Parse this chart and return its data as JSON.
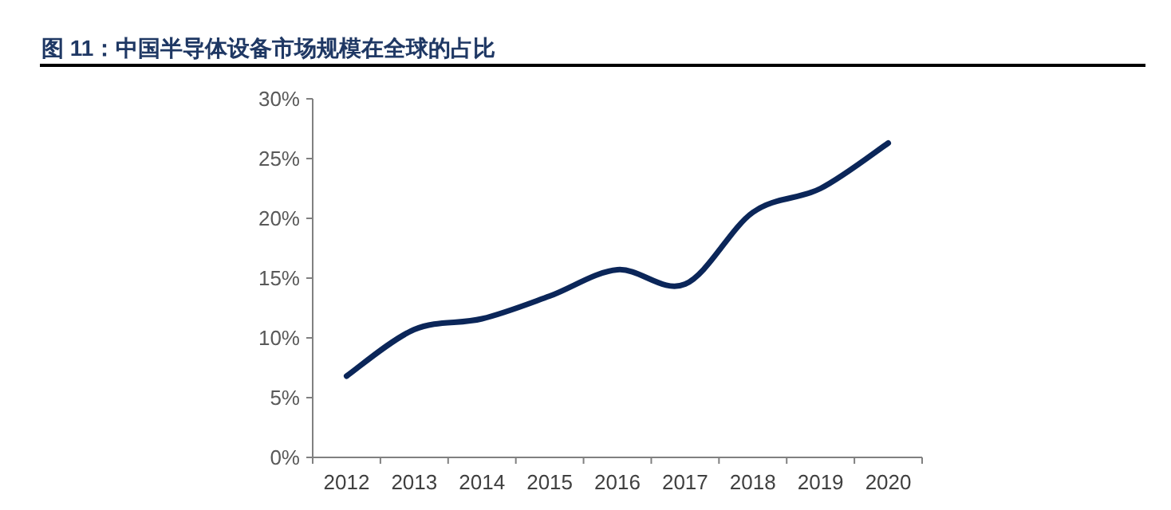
{
  "chart_data": {
    "type": "line",
    "title": "图 11：中国半导体设备市场规模在全球的占比",
    "categories": [
      "2012",
      "2013",
      "2014",
      "2015",
      "2016",
      "2017",
      "2018",
      "2019",
      "2020"
    ],
    "series": [
      {
        "color": "#0b2659",
        "values": [
          6.8,
          10.7,
          11.6,
          13.5,
          15.7,
          14.5,
          20.5,
          22.5,
          26.3
        ]
      }
    ],
    "ylim": [
      0,
      30
    ],
    "yticks": [
      {
        "value": 0,
        "label": "0%"
      },
      {
        "value": 5,
        "label": "5%"
      },
      {
        "value": 10,
        "label": "10%"
      },
      {
        "value": 15,
        "label": "15%"
      },
      {
        "value": 20,
        "label": "20%"
      },
      {
        "value": 25,
        "label": "25%"
      },
      {
        "value": 30,
        "label": "30%"
      }
    ],
    "grid": false
  }
}
